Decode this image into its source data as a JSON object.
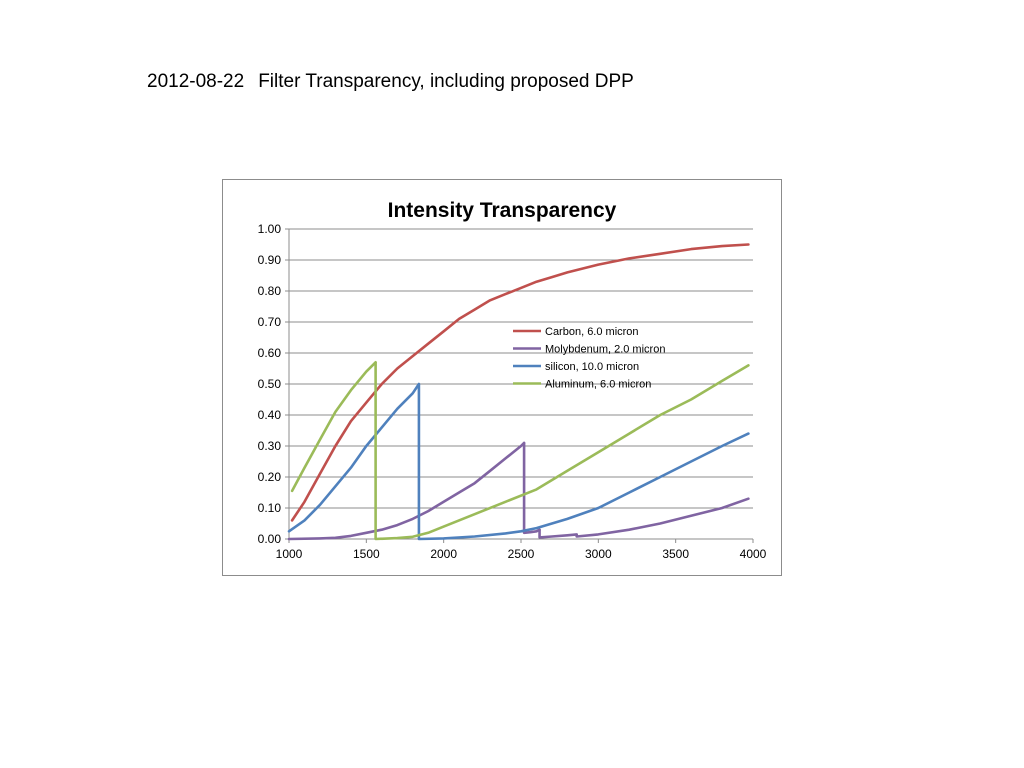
{
  "slide": {
    "date": "2012-08-22",
    "title_text": "Filter Transparency, including proposed DPP"
  },
  "chart_data": {
    "type": "line",
    "title": "Intensity Transparency",
    "xlabel": "",
    "ylabel": "",
    "xlim": [
      1000,
      4000
    ],
    "ylim": [
      0,
      1
    ],
    "grid": "horizontal",
    "legend_position": "right",
    "x_ticks": [
      "1000",
      "1500",
      "2000",
      "2500",
      "3000",
      "3500",
      "4000"
    ],
    "y_ticks": [
      "0.00",
      "0.10",
      "0.20",
      "0.30",
      "0.40",
      "0.50",
      "0.60",
      "0.70",
      "0.80",
      "0.90",
      "1.00"
    ],
    "series": [
      {
        "name": "Carbon, 6.0 micron",
        "color": "#c0504d",
        "segments": [
          [
            [
              1020,
              0.06
            ],
            [
              1100,
              0.12
            ],
            [
              1200,
              0.21
            ],
            [
              1300,
              0.3
            ],
            [
              1400,
              0.38
            ],
            [
              1500,
              0.44
            ],
            [
              1600,
              0.5
            ],
            [
              1700,
              0.55
            ],
            [
              1800,
              0.59
            ],
            [
              1900,
              0.63
            ],
            [
              2000,
              0.67
            ],
            [
              2100,
              0.71
            ],
            [
              2200,
              0.74
            ],
            [
              2300,
              0.77
            ],
            [
              2400,
              0.79
            ],
            [
              2500,
              0.81
            ],
            [
              2600,
              0.83
            ],
            [
              2700,
              0.845
            ],
            [
              2800,
              0.86
            ],
            [
              3000,
              0.885
            ],
            [
              3200,
              0.905
            ],
            [
              3400,
              0.92
            ],
            [
              3600,
              0.935
            ],
            [
              3800,
              0.945
            ],
            [
              3970,
              0.95
            ]
          ]
        ]
      },
      {
        "name": "Molybdenum,  2.0 micron",
        "color": "#8064a2",
        "segments": [
          [
            [
              1000,
              0.0
            ],
            [
              1200,
              0.002
            ],
            [
              1300,
              0.004
            ],
            [
              1400,
              0.01
            ],
            [
              1500,
              0.02
            ],
            [
              1600,
              0.03
            ],
            [
              1700,
              0.045
            ],
            [
              1800,
              0.065
            ],
            [
              1900,
              0.09
            ],
            [
              2000,
              0.12
            ],
            [
              2100,
              0.15
            ],
            [
              2200,
              0.18
            ],
            [
              2300,
              0.22
            ],
            [
              2400,
              0.26
            ],
            [
              2500,
              0.3
            ],
            [
              2520,
              0.31
            ]
          ],
          [
            [
              2520,
              0.02
            ],
            [
              2560,
              0.022
            ],
            [
              2600,
              0.025
            ],
            [
              2620,
              0.03
            ]
          ],
          [
            [
              2620,
              0.005
            ],
            [
              2700,
              0.008
            ],
            [
              2800,
              0.012
            ],
            [
              2860,
              0.015
            ]
          ],
          [
            [
              2860,
              0.008
            ],
            [
              3000,
              0.015
            ],
            [
              3200,
              0.03
            ],
            [
              3400,
              0.05
            ],
            [
              3600,
              0.075
            ],
            [
              3800,
              0.1
            ],
            [
              3970,
              0.13
            ]
          ]
        ]
      },
      {
        "name": "silicon, 10.0 micron",
        "color": "#4f81bd",
        "segments": [
          [
            [
              1000,
              0.025
            ],
            [
              1100,
              0.06
            ],
            [
              1200,
              0.11
            ],
            [
              1300,
              0.17
            ],
            [
              1400,
              0.23
            ],
            [
              1500,
              0.3
            ],
            [
              1600,
              0.36
            ],
            [
              1700,
              0.42
            ],
            [
              1800,
              0.47
            ],
            [
              1840,
              0.5
            ]
          ],
          [
            [
              1840,
              0.0
            ],
            [
              2000,
              0.002
            ],
            [
              2200,
              0.008
            ],
            [
              2400,
              0.018
            ],
            [
              2500,
              0.025
            ],
            [
              2600,
              0.035
            ],
            [
              2800,
              0.065
            ],
            [
              3000,
              0.1
            ],
            [
              3200,
              0.15
            ],
            [
              3400,
              0.2
            ],
            [
              3600,
              0.25
            ],
            [
              3800,
              0.3
            ],
            [
              3970,
              0.34
            ]
          ]
        ]
      },
      {
        "name": "Aluminum, 6.0 micron",
        "color": "#9bbb59",
        "segments": [
          [
            [
              1020,
              0.155
            ],
            [
              1100,
              0.23
            ],
            [
              1200,
              0.32
            ],
            [
              1300,
              0.41
            ],
            [
              1400,
              0.48
            ],
            [
              1500,
              0.54
            ],
            [
              1560,
              0.57
            ]
          ],
          [
            [
              1560,
              0.0
            ],
            [
              1700,
              0.003
            ],
            [
              1800,
              0.007
            ],
            [
              1900,
              0.02
            ],
            [
              2000,
              0.04
            ],
            [
              2200,
              0.08
            ],
            [
              2400,
              0.12
            ],
            [
              2600,
              0.16
            ],
            [
              2800,
              0.22
            ],
            [
              3000,
              0.28
            ],
            [
              3200,
              0.34
            ],
            [
              3400,
              0.4
            ],
            [
              3600,
              0.45
            ],
            [
              3800,
              0.51
            ],
            [
              3970,
              0.56
            ]
          ]
        ]
      }
    ]
  }
}
